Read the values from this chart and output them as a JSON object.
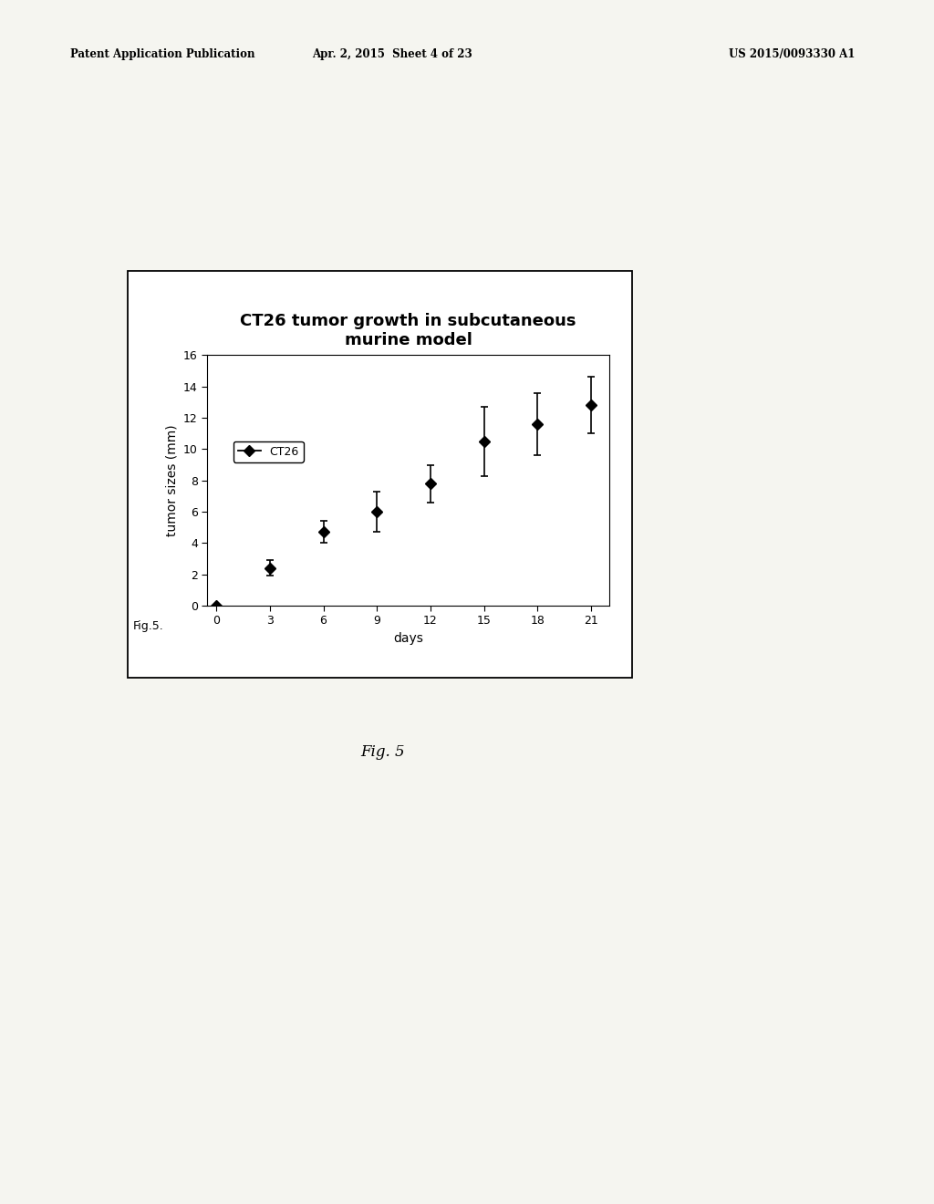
{
  "title": "CT26 tumor growth in subcutaneous\nmurine model",
  "xlabel": "days",
  "ylabel": "tumor sizes (mm)",
  "x": [
    0,
    3,
    6,
    9,
    12,
    15,
    18,
    21
  ],
  "y": [
    0,
    2.4,
    4.7,
    6.0,
    7.8,
    10.5,
    11.6,
    12.8
  ],
  "yerr": [
    0,
    0.5,
    0.7,
    1.3,
    1.2,
    2.2,
    2.0,
    1.8
  ],
  "ylim": [
    0,
    16
  ],
  "yticks": [
    0,
    2,
    4,
    6,
    8,
    10,
    12,
    14,
    16
  ],
  "xticks": [
    0,
    3,
    6,
    9,
    12,
    15,
    18,
    21
  ],
  "legend_label": "CT26",
  "line_color": "#000000",
  "marker": "D",
  "marker_color": "#000000",
  "marker_size": 6,
  "fig_caption": "Fig. 5",
  "fig_label": "Fig.5.",
  "header_left": "Patent Application Publication",
  "header_mid": "Apr. 2, 2015  Sheet 4 of 23",
  "header_right": "US 2015/0093330 A1",
  "background_color": "#f5f5f0",
  "plot_bg_color": "#ffffff",
  "title_fontsize": 13,
  "axis_fontsize": 10,
  "tick_fontsize": 9,
  "header_fontsize": 8.5
}
